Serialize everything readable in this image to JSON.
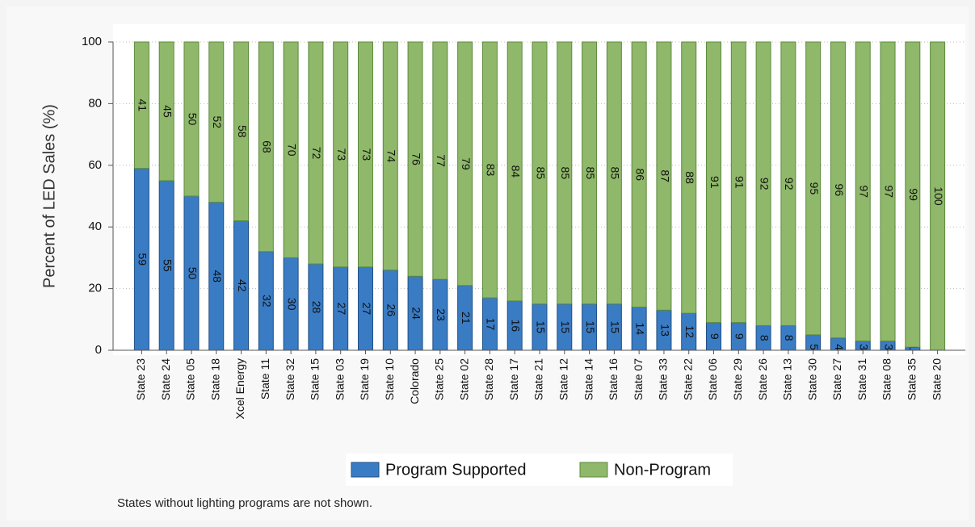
{
  "chart_data": {
    "type": "stacked_bar",
    "ylabel": "Percent of LED Sales (%)",
    "note": "States without lighting programs are not shown.",
    "categories": [
      "State 23",
      "State 24",
      "State 05",
      "State 18",
      "Xcel Energy",
      "State 11",
      "State 32",
      "State 15",
      "State 03",
      "State 19",
      "State 10",
      "Colorado",
      "State 25",
      "State 02",
      "State 28",
      "State 17",
      "State 21",
      "State 12",
      "State 14",
      "State 16",
      "State 07",
      "State 33",
      "State 22",
      "State 06",
      "State 29",
      "State 26",
      "State 13",
      "State 30",
      "State 27",
      "State 31",
      "State 08",
      "State 35",
      "State 20"
    ],
    "series": [
      {
        "name": "Program Supported",
        "color": "#3a7cc4",
        "values": [
          59,
          55,
          50,
          48,
          42,
          32,
          30,
          28,
          27,
          27,
          26,
          24,
          23,
          21,
          17,
          16,
          15,
          15,
          15,
          15,
          14,
          13,
          12,
          9,
          9,
          8,
          8,
          5,
          4,
          3,
          3,
          1,
          0
        ]
      },
      {
        "name": "Non-Program",
        "color": "#8fb86a",
        "values": [
          41,
          45,
          50,
          52,
          58,
          68,
          70,
          72,
          73,
          73,
          74,
          76,
          77,
          79,
          83,
          84,
          85,
          85,
          85,
          85,
          86,
          87,
          88,
          91,
          91,
          92,
          92,
          95,
          96,
          97,
          97,
          99,
          100
        ]
      }
    ],
    "ylim": [
      0,
      100
    ],
    "yticks": [
      0,
      20,
      40,
      60,
      80,
      100
    ],
    "grid": true,
    "legend": "bottom"
  }
}
